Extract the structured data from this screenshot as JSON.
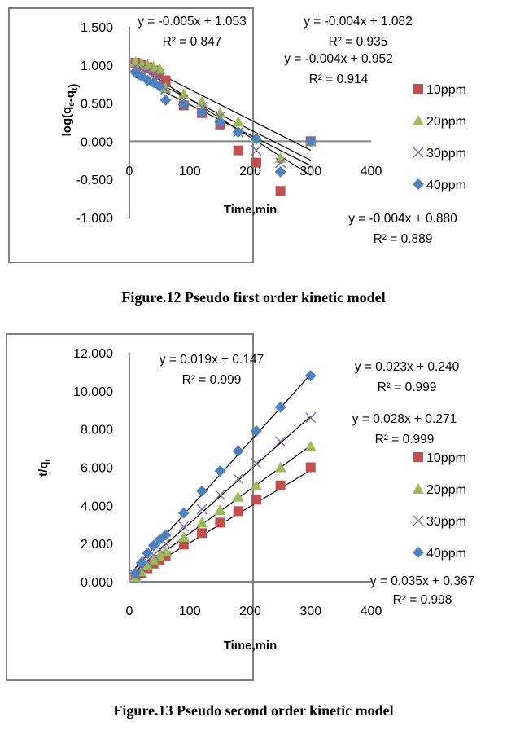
{
  "chart_data": [
    {
      "type": "scatter",
      "title": "Figure.12 Pseudo first order kinetic model",
      "xlabel": "Time,min",
      "ylabel": "log(qe-qt)",
      "ylabel_parts": {
        "base": "log(q",
        "sub1": "e",
        "mid": "-q",
        "sub2": "t",
        "end": ")"
      },
      "xlim": [
        0,
        400
      ],
      "ylim": [
        -1.0,
        1.5
      ],
      "xticks": [
        "0",
        "100",
        "200",
        "300",
        "400"
      ],
      "xtick_values": [
        0,
        100,
        200,
        300,
        400
      ],
      "yticks": [
        "1.500",
        "1.000",
        "0.500",
        "0.000",
        "-0.500",
        "-1.000"
      ],
      "ytick_values": [
        1.5,
        1.0,
        0.5,
        0.0,
        -0.5,
        -1.0
      ],
      "legend_position": "right",
      "x": [
        10,
        20,
        30,
        40,
        50,
        60,
        90,
        120,
        150,
        180,
        210,
        250,
        300
      ],
      "series": [
        {
          "name": "10ppm",
          "marker": "square",
          "color": "#C0504D",
          "values": [
            1.03,
            1.0,
            0.97,
            0.93,
            0.88,
            0.8,
            0.47,
            0.37,
            0.22,
            -0.12,
            -0.28,
            -0.65,
            0.0
          ],
          "trendline": {
            "slope": -0.005,
            "intercept": 1.053,
            "equation": "y = -0.005x + 1.053",
            "r2": "R² = 0.847"
          }
        },
        {
          "name": "20ppm",
          "marker": "triangle",
          "color": "#9BBB59",
          "values": [
            1.04,
            1.02,
            1.0,
            0.98,
            0.95,
            0.7,
            0.62,
            0.52,
            0.37,
            0.26,
            0.04,
            -0.22,
            0.0
          ],
          "trendline": {
            "slope": -0.004,
            "intercept": 1.082,
            "equation": "y = -0.004x + 1.082",
            "r2": "R² = 0.935"
          }
        },
        {
          "name": "30ppm",
          "marker": "x",
          "color": "#8064A2",
          "values": [
            0.98,
            0.95,
            0.92,
            0.88,
            0.85,
            0.68,
            0.55,
            0.45,
            0.32,
            0.12,
            -0.12,
            -0.28,
            0.0
          ],
          "trendline": {
            "slope": -0.004,
            "intercept": 0.952,
            "equation": "y = -0.004x + 0.952",
            "r2": "R² = 0.914"
          }
        },
        {
          "name": "40ppm",
          "marker": "diamond",
          "color": "#4F81BD",
          "values": [
            0.9,
            0.85,
            0.8,
            0.77,
            0.72,
            0.54,
            0.48,
            0.38,
            0.25,
            0.12,
            0.03,
            -0.4,
            0.0
          ],
          "trendline": {
            "slope": -0.004,
            "intercept": 0.88,
            "equation": "y = -0.004x + 0.880",
            "r2": "R² = 0.889"
          }
        }
      ]
    },
    {
      "type": "scatter",
      "title": "Figure.13 Pseudo second order kinetic model",
      "xlabel": "Time,min",
      "ylabel": "t/qt",
      "ylabel_parts": {
        "base": "t/q",
        "sub": "t"
      },
      "xlim": [
        0,
        400
      ],
      "ylim": [
        0,
        12
      ],
      "xticks": [
        "0",
        "100",
        "200",
        "300",
        "400"
      ],
      "xtick_values": [
        0,
        100,
        200,
        300,
        400
      ],
      "yticks": [
        "12.000",
        "10.000",
        "8.000",
        "6.000",
        "4.000",
        "2.000",
        "0.000"
      ],
      "ytick_values": [
        12,
        10,
        8,
        6,
        4,
        2,
        0
      ],
      "legend_position": "right",
      "x": [
        10,
        20,
        30,
        40,
        50,
        60,
        90,
        120,
        150,
        180,
        210,
        250,
        300
      ],
      "series": [
        {
          "name": "10ppm",
          "marker": "square",
          "color": "#C0504D",
          "values": [
            0.25,
            0.45,
            0.7,
            0.95,
            1.15,
            1.35,
            1.95,
            2.55,
            3.1,
            3.7,
            4.3,
            5.05,
            6.0
          ],
          "trendline": {
            "slope": 0.019,
            "intercept": 0.147,
            "equation": "y = 0.019x + 0.147",
            "r2": "R² = 0.999"
          }
        },
        {
          "name": "20ppm",
          "marker": "triangle",
          "color": "#9BBB59",
          "values": [
            0.25,
            0.55,
            0.85,
            1.1,
            1.35,
            1.6,
            2.35,
            3.1,
            3.75,
            4.45,
            5.05,
            6.0,
            7.1
          ],
          "trendline": {
            "slope": 0.023,
            "intercept": 0.24,
            "equation": "y = 0.023x + 0.240",
            "r2": "R² = 0.999"
          }
        },
        {
          "name": "30ppm",
          "marker": "x",
          "color": "#8064A2",
          "values": [
            0.35,
            0.7,
            1.05,
            1.4,
            1.7,
            2.0,
            2.9,
            3.8,
            4.55,
            5.4,
            6.2,
            7.35,
            8.6
          ],
          "trendline": {
            "slope": 0.028,
            "intercept": 0.271,
            "equation": "y = 0.028x + 0.271",
            "r2": "R² = 0.999"
          }
        },
        {
          "name": "40ppm",
          "marker": "diamond",
          "color": "#4F81BD",
          "values": [
            0.45,
            1.0,
            1.5,
            1.9,
            2.2,
            2.45,
            3.6,
            4.75,
            5.8,
            6.85,
            7.9,
            9.15,
            10.8
          ],
          "trendline": {
            "slope": 0.035,
            "intercept": 0.367,
            "equation": "y = 0.035x + 0.367",
            "r2": "R² = 0.998"
          }
        }
      ]
    }
  ],
  "captions": {
    "fig12": "Figure.12 Pseudo first order kinetic model",
    "fig13": "Figure.13 Pseudo second order kinetic model"
  }
}
